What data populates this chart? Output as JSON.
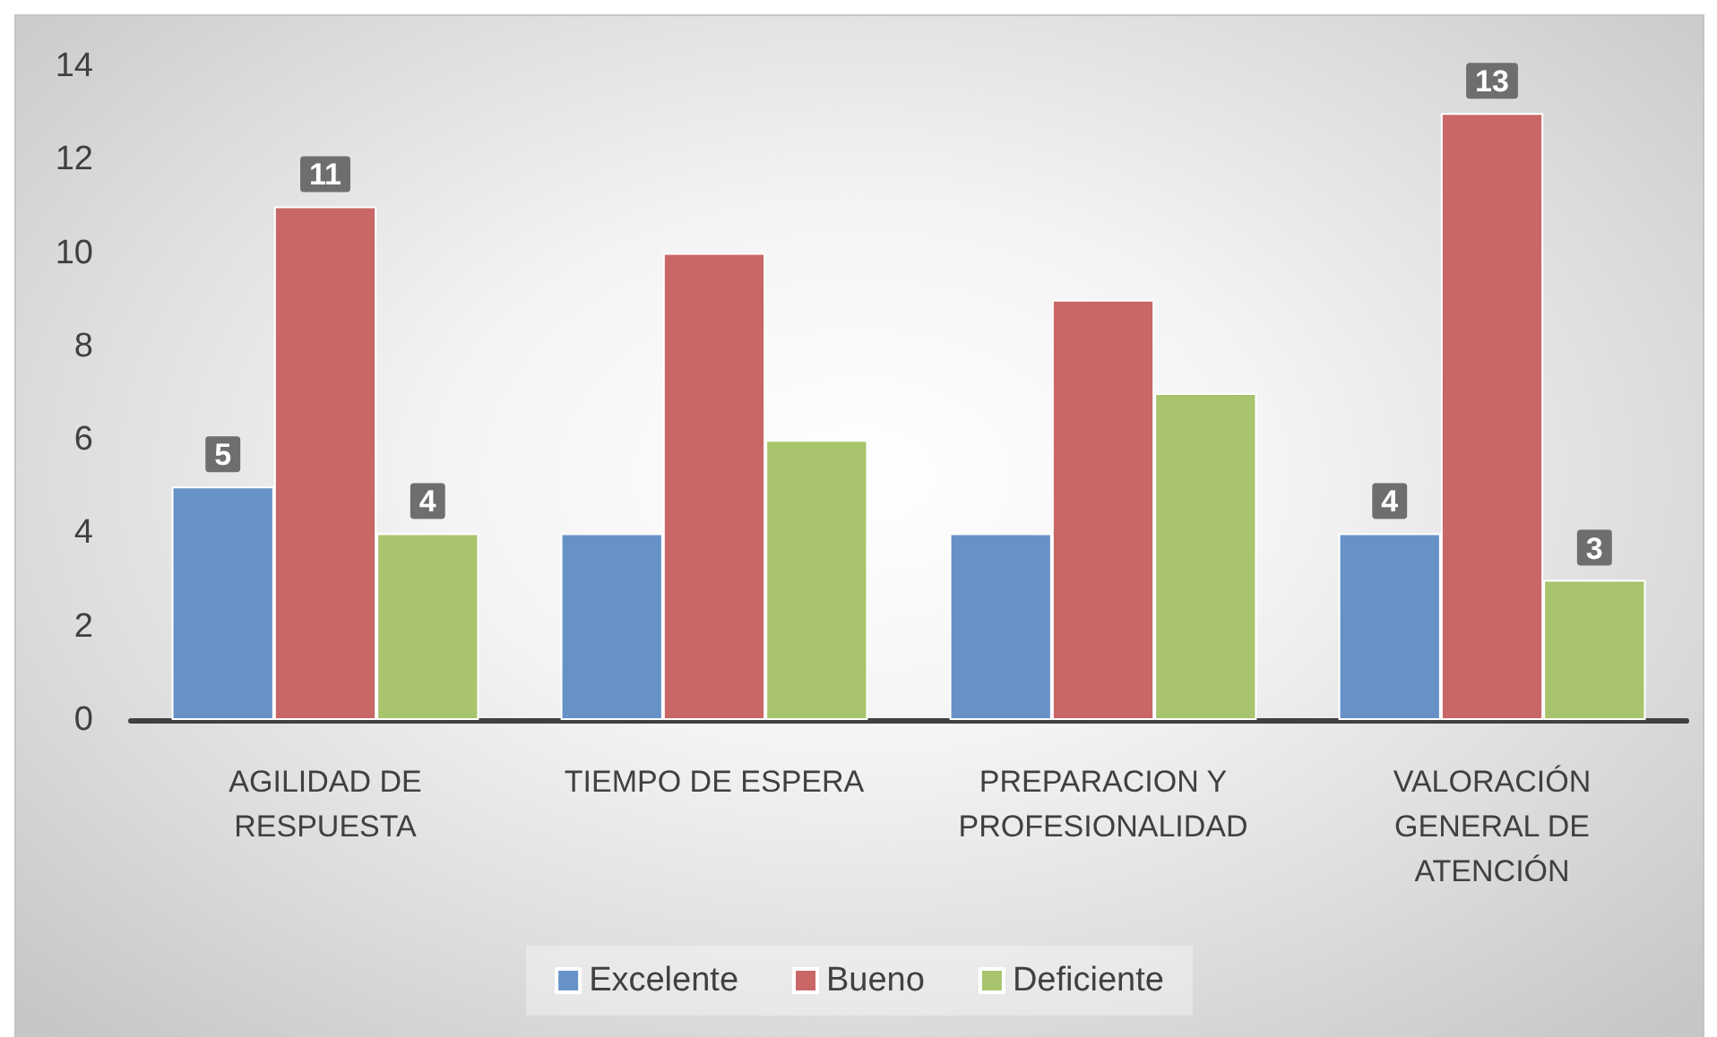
{
  "chart_data": {
    "type": "bar",
    "categories": [
      "AGILIDAD DE\nRESPUESTA",
      "TIEMPO DE ESPERA",
      "PREPARACION Y\nPROFESIONALIDAD",
      "VALORACIÓN\nGENERAL DE\nATENCIÓN"
    ],
    "series": [
      {
        "name": "Excelente",
        "color": "#6792c7",
        "values": [
          5,
          4,
          4,
          4
        ],
        "value_labels": [
          "5",
          null,
          null,
          "4"
        ]
      },
      {
        "name": "Bueno",
        "color": "#c86766",
        "values": [
          11,
          10,
          9,
          13
        ],
        "value_labels": [
          "11",
          null,
          null,
          "13"
        ]
      },
      {
        "name": "Deficiente",
        "color": "#a8c46c",
        "values": [
          4,
          6,
          7,
          3
        ],
        "value_labels": [
          "4",
          null,
          null,
          "3"
        ]
      }
    ],
    "ylim": [
      0,
      14
    ],
    "yticks": [
      0,
      2,
      4,
      6,
      8,
      10,
      12,
      14
    ],
    "grid": false,
    "legend": "bottom"
  }
}
